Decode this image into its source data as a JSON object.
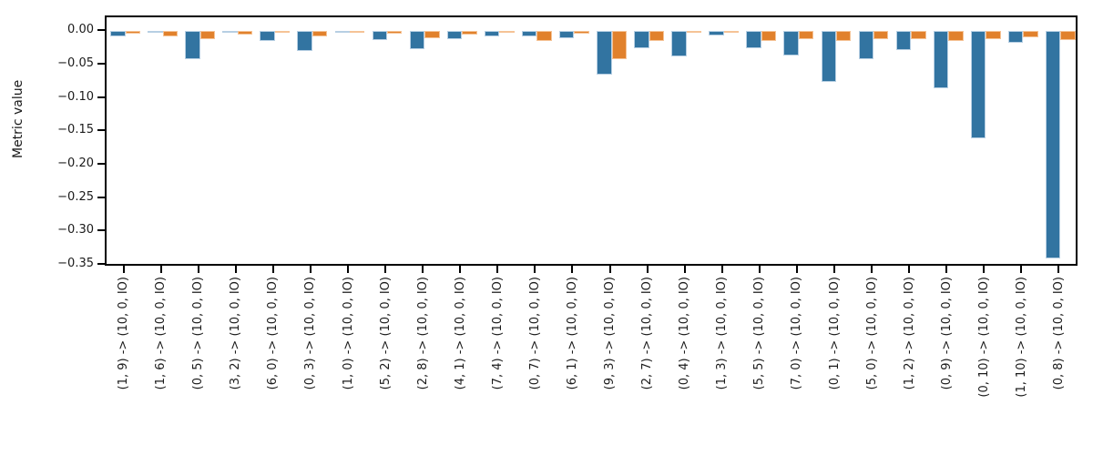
{
  "figure": {
    "background": "#ffffff",
    "text_color": "#1a1a1a"
  },
  "chart_data": {
    "type": "bar",
    "title": "",
    "xlabel": "",
    "ylabel": "Metric value",
    "grid": false,
    "legend": "none",
    "ylim": [
      -0.3528,
      0.0222
    ],
    "yticks": [
      {
        "value": 0.0,
        "label": "0.00"
      },
      {
        "value": -0.05,
        "label": "−0.05"
      },
      {
        "value": -0.1,
        "label": "−0.10"
      },
      {
        "value": -0.15,
        "label": "−0.15"
      },
      {
        "value": -0.2,
        "label": "−0.20"
      },
      {
        "value": -0.25,
        "label": "−0.25"
      },
      {
        "value": -0.3,
        "label": "−0.30"
      },
      {
        "value": -0.35,
        "label": "−0.35"
      }
    ],
    "categories": [
      "(1, 9) -> (10, 0, IO)",
      "(1, 6) -> (10, 0, IO)",
      "(0, 5) -> (10, 0, IO)",
      "(3, 2) -> (10, 0, IO)",
      "(6, 0) -> (10, 0, IO)",
      "(0, 3) -> (10, 0, IO)",
      "(1, 0) -> (10, 0, IO)",
      "(5, 2) -> (10, 0, IO)",
      "(2, 8) -> (10, 0, IO)",
      "(4, 1) -> (10, 0, IO)",
      "(7, 4) -> (10, 0, IO)",
      "(0, 7) -> (10, 0, IO)",
      "(6, 1) -> (10, 0, IO)",
      "(9, 3) -> (10, 0, IO)",
      "(2, 7) -> (10, 0, IO)",
      "(0, 4) -> (10, 0, IO)",
      "(1, 3) -> (10, 0, IO)",
      "(5, 5) -> (10, 0, IO)",
      "(7, 0) -> (10, 0, IO)",
      "(0, 1) -> (10, 0, IO)",
      "(5, 0) -> (10, 0, IO)",
      "(1, 2) -> (10, 0, IO)",
      "(0, 9) -> (10, 0, IO)",
      "(0, 10) -> (10, 0, IO)",
      "(1, 10) -> (10, 0, IO)",
      "(0, 8) -> (10, 0, IO)"
    ],
    "series": [
      {
        "name": "series-blue",
        "color": "#3274a1",
        "edge_color": "#b7cfe3",
        "values": [
          -0.008,
          -0.003,
          -0.042,
          -0.001,
          -0.015,
          -0.03,
          -0.001,
          -0.013,
          -0.027,
          -0.012,
          -0.008,
          -0.008,
          -0.011,
          -0.065,
          -0.025,
          -0.038,
          -0.007,
          -0.025,
          -0.036,
          -0.076,
          -0.042,
          -0.028,
          -0.086,
          -0.16,
          -0.017,
          -0.34
        ]
      },
      {
        "name": "series-orange",
        "color": "#e1812c",
        "edge_color": "#f5c396",
        "values": [
          -0.004,
          -0.008,
          -0.012,
          -0.005,
          -0.003,
          -0.008,
          -0.002,
          -0.004,
          -0.01,
          -0.005,
          -0.001,
          -0.014,
          -0.004,
          -0.042,
          -0.015,
          -0.001,
          -0.003,
          -0.015,
          -0.012,
          -0.015,
          -0.012,
          -0.012,
          -0.015,
          -0.012,
          -0.009,
          -0.013
        ]
      }
    ]
  }
}
